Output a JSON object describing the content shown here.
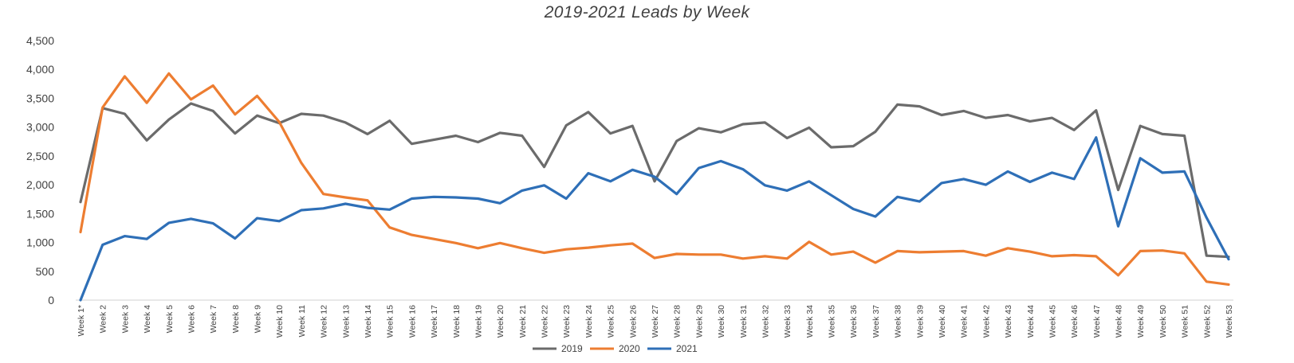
{
  "chart_data": {
    "type": "line",
    "title": "2019-2021 Leads by Week",
    "xlabel": "",
    "ylabel": "",
    "ylim": [
      0,
      4500
    ],
    "yticks": [
      0,
      500,
      1000,
      1500,
      2000,
      2500,
      3000,
      3500,
      4000,
      4500
    ],
    "ytick_labels": [
      "0",
      "500",
      "1,000",
      "1,500",
      "2,000",
      "2,500",
      "3,000",
      "3,500",
      "4,000",
      "4,500"
    ],
    "grid": false,
    "legend_position": "bottom",
    "categories": [
      "Week 1*",
      "Week 2",
      "Week 3",
      "Week 4",
      "Week 5",
      "Week 6",
      "Week 7",
      "Week 8",
      "Week 9",
      "Week 10",
      "Week 11",
      "Week 12",
      "Week 13",
      "Week 14",
      "Week 15",
      "Week 16",
      "Week 17",
      "Week 18",
      "Week 19",
      "Week 20",
      "Week 21",
      "Week 22",
      "Week 23",
      "Week 24",
      "Week 25",
      "Week 26",
      "Week 27",
      "Week 28",
      "Week 29",
      "Week 30",
      "Week 31",
      "Week 32",
      "Week 33",
      "Week 34",
      "Week 35",
      "Week 36",
      "Week 37",
      "Week 38",
      "Week 39",
      "Week 40",
      "Week 41",
      "Week 42",
      "Week 43",
      "Week 44",
      "Week 45",
      "Week 46",
      "Week 47",
      "Week 48",
      "Week 49",
      "Week 50",
      "Week 51",
      "Week 52",
      "Week 53"
    ],
    "series": [
      {
        "name": "2019",
        "color": "#6b6b6b",
        "values": [
          1700,
          3330,
          3230,
          2770,
          3130,
          3410,
          3280,
          2890,
          3200,
          3070,
          3230,
          3200,
          3080,
          2880,
          3110,
          2710,
          2780,
          2850,
          2740,
          2900,
          2850,
          2310,
          3030,
          3260,
          2890,
          3020,
          2060,
          2760,
          2980,
          2910,
          3050,
          3080,
          2810,
          2990,
          2650,
          2670,
          2920,
          3390,
          3360,
          3210,
          3280,
          3160,
          3210,
          3100,
          3160,
          2950,
          3290,
          1910,
          3020,
          2880,
          2850,
          770,
          750
        ]
      },
      {
        "name": "2020",
        "color": "#ed7d31",
        "values": [
          1180,
          3340,
          3880,
          3420,
          3930,
          3480,
          3720,
          3220,
          3540,
          3090,
          2380,
          1840,
          1780,
          1730,
          1260,
          1130,
          1060,
          990,
          900,
          990,
          900,
          820,
          880,
          910,
          950,
          980,
          730,
          800,
          790,
          790,
          720,
          760,
          720,
          1010,
          790,
          840,
          650,
          850,
          830,
          840,
          850,
          770,
          900,
          840,
          760,
          780,
          760,
          430,
          850,
          860,
          810,
          320,
          270
        ]
      },
      {
        "name": "2021",
        "color": "#2e6fb7",
        "values": [
          0,
          960,
          1110,
          1060,
          1340,
          1410,
          1330,
          1070,
          1420,
          1370,
          1560,
          1590,
          1670,
          1600,
          1570,
          1760,
          1790,
          1780,
          1760,
          1680,
          1900,
          1990,
          1760,
          2200,
          2060,
          2260,
          2140,
          1840,
          2290,
          2410,
          2270,
          1990,
          1900,
          2060,
          1820,
          1580,
          1450,
          1790,
          1710,
          2030,
          2100,
          2000,
          2230,
          2050,
          2210,
          2100,
          2820,
          1280,
          2460,
          2210,
          2230,
          1430,
          710
        ]
      }
    ]
  }
}
